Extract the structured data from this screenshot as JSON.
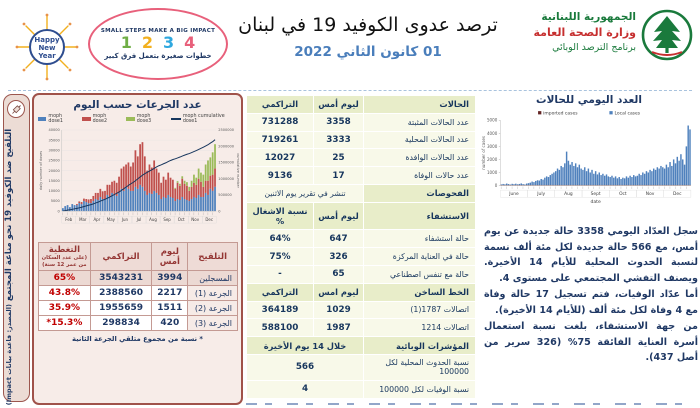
{
  "header": {
    "title": "ترصد عدوى الكوفيد 19 في لبنان",
    "date": "01 كانون الثاني 2022",
    "ministry": {
      "line1": "الجمهورية اللبنانية",
      "line2": "وزارة الصحة العامة",
      "line3": "برنامج الترصد الوبائي"
    },
    "happy_new_year": {
      "l1": "Happy",
      "l2": "New",
      "l3": "Year"
    },
    "poster": {
      "top": "SMALL STEPS MAKE A BIG IMPACT",
      "numbers": [
        "1",
        "2",
        "3",
        "4"
      ],
      "bottom": "خطوات صغيرة بتعمل فرق كبير"
    }
  },
  "sidebar": {
    "title": "التلقيح ضد الكوفيد 19  نحو مناعة المجتمع",
    "source": "(المصدر: قاعدة بيانات Impact)"
  },
  "vax_table": {
    "headers": {
      "vaccination": "التلقيح",
      "yesterday": "ليوم أمس",
      "cumulative": "التراكمي",
      "coverage": "التغطية",
      "coverage_note": "(على عدد السكان من عمر 12 سنة)"
    },
    "rows": [
      {
        "label": "المسجلين",
        "yesterday": "3994",
        "cumulative": "3543231",
        "coverage": "65%"
      },
      {
        "label": "الجرعة (1)",
        "yesterday": "2217",
        "cumulative": "2388560",
        "coverage": "43.8%"
      },
      {
        "label": "الجرعة (2)",
        "yesterday": "1511",
        "cumulative": "1955659",
        "coverage": "35.9%"
      },
      {
        "label": "الجرعة (3)",
        "yesterday": "420",
        "cumulative": "298834",
        "coverage": "15.3%*"
      }
    ],
    "footnote": "* نسبة من مجموع متلقي الجرعة الثانية"
  },
  "mid_table": {
    "rows": [
      {
        "t": "h",
        "c": [
          "الحالات",
          "ليوم أمس",
          "التراكمي"
        ]
      },
      {
        "t": "d",
        "c": [
          "عدد الحالات المثبتة",
          "3358",
          "731288"
        ]
      },
      {
        "t": "d",
        "c": [
          "عدد الحالات المحلية",
          "3333",
          "719261"
        ]
      },
      {
        "t": "d",
        "c": [
          "عدد الحالات الوافدة",
          "25",
          "12027"
        ]
      },
      {
        "t": "d",
        "c": [
          "عدد حالات الوفاة",
          "17",
          "9136"
        ]
      },
      {
        "t": "hs",
        "c": [
          "الفحوصات",
          "تنشر في تقرير يوم الاثنين"
        ]
      },
      {
        "t": "h",
        "c": [
          "الاستشفاء",
          "ليوم أمس",
          "نسبة الاشغال %"
        ]
      },
      {
        "t": "d",
        "c": [
          "حالة استشفاء",
          "647",
          "64%"
        ]
      },
      {
        "t": "d",
        "c": [
          "حالة في العناية المركزة",
          "326",
          "75%"
        ]
      },
      {
        "t": "d",
        "c": [
          "حالة مع تنفس اصطناعي",
          "65",
          "-"
        ]
      },
      {
        "t": "h",
        "c": [
          "الخط الساخن",
          "ليوم امس",
          "التراكمي"
        ]
      },
      {
        "t": "d",
        "c": [
          "اتصالات 1787(1)",
          "1029",
          "364189"
        ]
      },
      {
        "t": "d",
        "c": [
          "اتصالات 1214",
          "1987",
          "588100"
        ]
      },
      {
        "t": "h2",
        "c": [
          "المؤشرات الوبائية",
          "خلال 14 يوم الأخيرة"
        ]
      },
      {
        "t": "ds",
        "c": [
          "نسبة الحدوث المحلية لكل 100000",
          "566"
        ]
      },
      {
        "t": "ds",
        "c": [
          "نسبة الوفيات لكل 100000",
          "4"
        ]
      }
    ]
  },
  "summary": {
    "p1": "سجل العدّاد اليومي 3358 حالة جديدة عن يوم أمس، مع 566 حالة جديدة لكل مئة ألف نسمة لنسبة الحدوث المحلية للأيام 14 الأخيرة. ويصنف التفشي المجتمعي على مستوى 4.",
    "p2": "أما عدّاد الوفيات، فتم تسجيل 17 حالة وفاة مع 4 وفاة لكل مئة ألف (للأيام 14 الأخيرة).",
    "p3": "من جهة الاستشفاء، بلغت نسبة استعمال أسرة العناية الفائقة 75% (326 سرير من أصل 437)."
  },
  "chart_data": [
    {
      "type": "bar",
      "stacked": true,
      "title": "عدد الجرعات حسب اليوم",
      "ylabel_left": "daily number of doses",
      "ylabel_right": "cumulative number",
      "ylim_left": [
        0,
        40000
      ],
      "ylim_right": [
        0,
        2500000
      ],
      "yticks_left": [
        0,
        5000,
        10000,
        15000,
        20000,
        25000,
        30000,
        35000,
        40000
      ],
      "yticks_right": [
        0,
        500000,
        1000000,
        1500000,
        2000000,
        2500000
      ],
      "months": [
        "Feb",
        "Mar",
        "Apr",
        "May",
        "Jun",
        "Jul",
        "Aug",
        "Sep",
        "Oct",
        "Nov",
        "Dec"
      ],
      "legend_position": "top",
      "series": [
        {
          "name": "moph dose1",
          "color": "#4f81bd",
          "values": [
            1500,
            2500,
            3000,
            2000,
            3500,
            3000,
            3000,
            4000,
            3500,
            5000,
            4500,
            4000,
            4000,
            5000,
            6000,
            5500,
            7000,
            6000,
            6000,
            8000,
            7000,
            9000,
            8000,
            7500,
            9000,
            11000,
            10000,
            12000,
            11000,
            10000,
            10000,
            12000,
            11000,
            13000,
            12000,
            10000,
            8000,
            9000,
            8500,
            10000,
            9000,
            8000,
            6000,
            7000,
            6500,
            8000,
            7000,
            6500,
            5000,
            6000,
            5500,
            7000,
            6000,
            5500,
            5000,
            6000,
            7000,
            6500,
            8000,
            7000,
            7000,
            9000,
            8000,
            11000,
            10000,
            12000
          ]
        },
        {
          "name": "moph dose2",
          "color": "#c0504d",
          "values": [
            0,
            0,
            0,
            0,
            0,
            0,
            500,
            800,
            1000,
            1200,
            1500,
            1800,
            2000,
            2500,
            3000,
            3500,
            4000,
            3800,
            4000,
            5000,
            6000,
            5500,
            7000,
            6500,
            8000,
            10000,
            12000,
            11000,
            13000,
            12000,
            14000,
            18000,
            16000,
            20000,
            22000,
            17000,
            12000,
            14000,
            13000,
            15000,
            12000,
            11000,
            8000,
            10000,
            9000,
            11000,
            9500,
            9000,
            6000,
            8000,
            7000,
            9000,
            7500,
            7000,
            5000,
            6000,
            7000,
            6500,
            8000,
            7500,
            5000,
            6000,
            7000,
            6500,
            8000,
            9000
          ]
        },
        {
          "name": "moph dose3",
          "color": "#9bbb59",
          "values": [
            0,
            0,
            0,
            0,
            0,
            0,
            0,
            0,
            0,
            0,
            0,
            0,
            0,
            0,
            0,
            0,
            0,
            0,
            0,
            0,
            0,
            0,
            0,
            0,
            0,
            0,
            0,
            0,
            0,
            0,
            0,
            0,
            0,
            0,
            0,
            0,
            0,
            0,
            0,
            0,
            0,
            0,
            0,
            0,
            0,
            0,
            0,
            0,
            500,
            800,
            1000,
            1200,
            1500,
            1800,
            2000,
            3000,
            4000,
            3500,
            5000,
            4500,
            6000,
            8000,
            10000,
            9000,
            11000,
            12000
          ]
        },
        {
          "name": "moph cumulative dose1",
          "color": "#17365d",
          "type": "line",
          "derived_from": "moph dose1 running total",
          "final_value": 2200000
        }
      ]
    },
    {
      "type": "bar",
      "title": "العدد اليومي للحالات",
      "ylabel": "number of cases",
      "xlabel": "date",
      "ylim": [
        0,
        5000
      ],
      "yticks": [
        0,
        1000,
        2000,
        3000,
        4000,
        5000
      ],
      "months": [
        "June",
        "July",
        "Aug",
        "Sept",
        "Oct",
        "Nov",
        "Dec"
      ],
      "legend_position": "top",
      "series": [
        {
          "name": "imported cases",
          "color": "#632423",
          "approx_daily_value": 25
        },
        {
          "name": "Local cases",
          "color": "#4f81bd",
          "values": [
            80,
            120,
            90,
            150,
            110,
            70,
            130,
            100,
            140,
            90,
            120,
            160,
            110,
            80,
            150,
            180,
            220,
            300,
            260,
            350,
            400,
            380,
            500,
            450,
            600,
            700,
            650,
            800,
            900,
            1000,
            1100,
            1300,
            1200,
            1500,
            1400,
            1700,
            2600,
            1900,
            1600,
            1800,
            1500,
            1700,
            1400,
            1600,
            1300,
            1200,
            1400,
            1100,
            1300,
            1000,
            1200,
            900,
            1100,
            850,
            1000,
            800,
            900,
            750,
            850,
            700,
            650,
            750,
            600,
            700,
            550,
            650,
            500,
            600,
            550,
            700,
            600,
            750,
            650,
            800,
            700,
            750,
            900,
            800,
            1000,
            900,
            1100,
            1000,
            1200,
            1100,
            1300,
            1200,
            1400,
            1300,
            1500,
            1400,
            1300,
            1600,
            1400,
            1800,
            1500,
            2000,
            1700,
            2200,
            1900,
            2400,
            2000,
            1600,
            3000,
            4600,
            4300
          ]
        }
      ]
    }
  ],
  "colors": {
    "navy_text": "#1f3864",
    "date_blue": "#4a7ebb",
    "table_header_olive": "#e8edc9",
    "table_cell_cream": "#f8f9e9",
    "vax_header_pink": "#eedbd6",
    "maroon_border": "#a0524a",
    "coverage_red": "#c00000",
    "gov_green": "#1a7a3c",
    "gov_red": "#c62f2f"
  }
}
